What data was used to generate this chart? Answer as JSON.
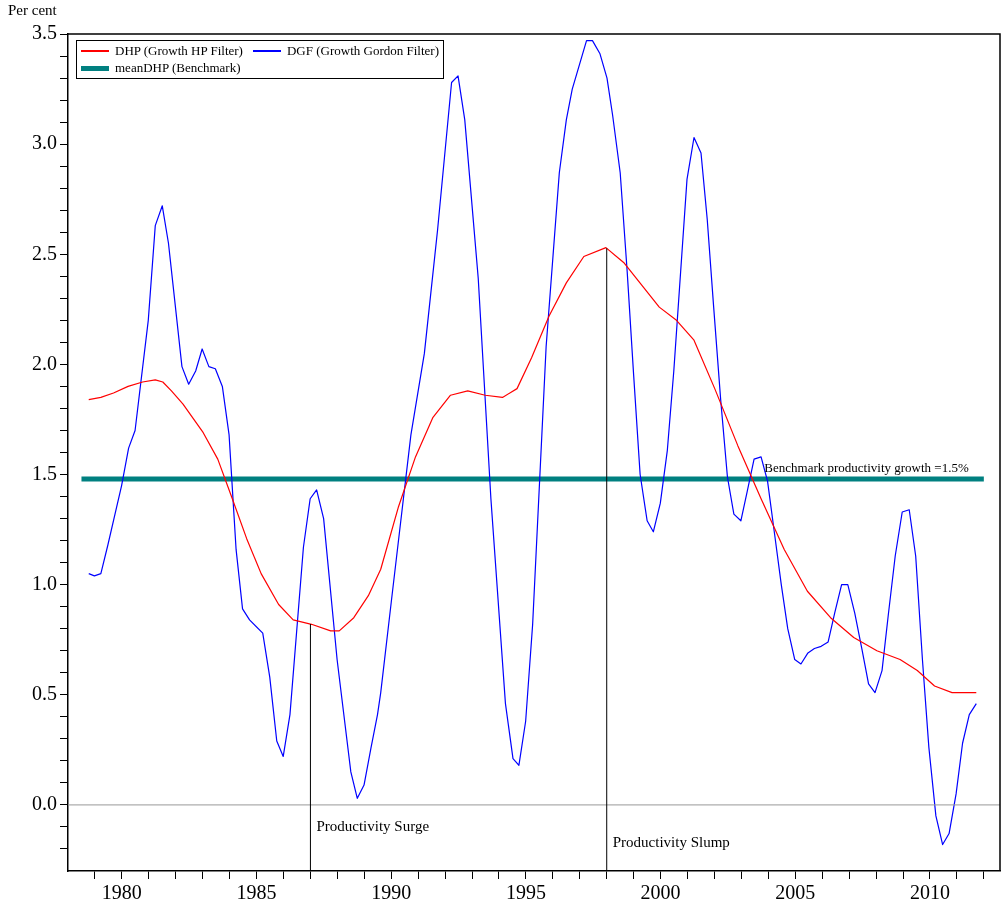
{
  "chart_data": {
    "type": "line",
    "ylabel": "Per cent",
    "xlim": [
      1978,
      2012.6
    ],
    "ylim": [
      -0.3,
      3.5
    ],
    "xticks": [
      {
        "value": 1979,
        "label": null
      },
      {
        "value": 1980,
        "label": "1980"
      },
      {
        "value": 1981,
        "label": null
      },
      {
        "value": 1982,
        "label": null
      },
      {
        "value": 1983,
        "label": null
      },
      {
        "value": 1984,
        "label": null
      },
      {
        "value": 1985,
        "label": "1985"
      },
      {
        "value": 1986,
        "label": null
      },
      {
        "value": 1987,
        "label": null
      },
      {
        "value": 1988,
        "label": null
      },
      {
        "value": 1989,
        "label": null
      },
      {
        "value": 1990,
        "label": "1990"
      },
      {
        "value": 1991,
        "label": null
      },
      {
        "value": 1992,
        "label": null
      },
      {
        "value": 1993,
        "label": null
      },
      {
        "value": 1994,
        "label": null
      },
      {
        "value": 1995,
        "label": "1995"
      },
      {
        "value": 1996,
        "label": null
      },
      {
        "value": 1997,
        "label": null
      },
      {
        "value": 1998,
        "label": null
      },
      {
        "value": 1999,
        "label": null
      },
      {
        "value": 2000,
        "label": "2000"
      },
      {
        "value": 2001,
        "label": null
      },
      {
        "value": 2002,
        "label": null
      },
      {
        "value": 2003,
        "label": null
      },
      {
        "value": 2004,
        "label": null
      },
      {
        "value": 2005,
        "label": "2005"
      },
      {
        "value": 2006,
        "label": null
      },
      {
        "value": 2007,
        "label": null
      },
      {
        "value": 2008,
        "label": null
      },
      {
        "value": 2009,
        "label": null
      },
      {
        "value": 2010,
        "label": "2010"
      },
      {
        "value": 2011,
        "label": null
      },
      {
        "value": 2012,
        "label": null
      }
    ],
    "yticks": [
      {
        "value": -0.2,
        "label": null
      },
      {
        "value": -0.1,
        "label": null
      },
      {
        "value": 0,
        "label": "0.0"
      },
      {
        "value": 0.1,
        "label": null
      },
      {
        "value": 0.2,
        "label": null
      },
      {
        "value": 0.3,
        "label": null
      },
      {
        "value": 0.4,
        "label": null
      },
      {
        "value": 0.5,
        "label": "0.5"
      },
      {
        "value": 0.6,
        "label": null
      },
      {
        "value": 0.7,
        "label": null
      },
      {
        "value": 0.8,
        "label": null
      },
      {
        "value": 0.9,
        "label": null
      },
      {
        "value": 1,
        "label": "1.0"
      },
      {
        "value": 1.1,
        "label": null
      },
      {
        "value": 1.2,
        "label": null
      },
      {
        "value": 1.3,
        "label": null
      },
      {
        "value": 1.4,
        "label": null
      },
      {
        "value": 1.5,
        "label": "1.5"
      },
      {
        "value": 1.6,
        "label": null
      },
      {
        "value": 1.7,
        "label": null
      },
      {
        "value": 1.8,
        "label": null
      },
      {
        "value": 1.9,
        "label": null
      },
      {
        "value": 2,
        "label": "2.0"
      },
      {
        "value": 2.1,
        "label": null
      },
      {
        "value": 2.2,
        "label": null
      },
      {
        "value": 2.3,
        "label": null
      },
      {
        "value": 2.4,
        "label": null
      },
      {
        "value": 2.5,
        "label": "2.5"
      },
      {
        "value": 2.6,
        "label": null
      },
      {
        "value": 2.7,
        "label": null
      },
      {
        "value": 2.8,
        "label": null
      },
      {
        "value": 2.9,
        "label": null
      },
      {
        "value": 3,
        "label": "3.0"
      },
      {
        "value": 3.1,
        "label": null
      },
      {
        "value": 3.2,
        "label": null
      },
      {
        "value": 3.3,
        "label": null
      },
      {
        "value": 3.4,
        "label": null
      },
      {
        "value": 3.5,
        "label": "3.5"
      }
    ],
    "legend": "top left",
    "grid": false,
    "marker": "none",
    "series": [
      {
        "name": "DHP (Growth HP Filter)",
        "color": "#ff0000",
        "x": [
          1978.77,
          1979.22,
          1979.69,
          1980.23,
          1980.77,
          1981.24,
          1981.52,
          1981.84,
          1982.27,
          1983.02,
          1983.56,
          1984.1,
          1984.63,
          1985.17,
          1985.82,
          1986.36,
          1987.04,
          1987.75,
          1988.07,
          1988.61,
          1989.15,
          1989.61,
          1990.26,
          1990.9,
          1991.55,
          1992.2,
          1992.84,
          1993.49,
          1994.13,
          1994.67,
          1995.21,
          1995.86,
          1996.5,
          1997.15,
          1997.97,
          1998.65,
          1999.3,
          1999.95,
          2000.59,
          2001.24,
          2002.01,
          2002.87,
          2003.73,
          2004.59,
          2005.45,
          2006.31,
          2007.17,
          2008.03,
          2008.89,
          2009.53,
          2010.17,
          2010.82,
          2011.72
        ],
        "values": [
          1.84,
          1.85,
          1.87,
          1.9,
          1.92,
          1.93,
          1.92,
          1.88,
          1.82,
          1.69,
          1.57,
          1.39,
          1.21,
          1.05,
          0.91,
          0.84,
          0.82,
          0.79,
          0.79,
          0.85,
          0.95,
          1.07,
          1.35,
          1.58,
          1.76,
          1.86,
          1.88,
          1.86,
          1.85,
          1.89,
          2.03,
          2.22,
          2.37,
          2.49,
          2.53,
          2.46,
          2.36,
          2.26,
          2.2,
          2.11,
          1.89,
          1.63,
          1.39,
          1.16,
          0.97,
          0.85,
          0.76,
          0.7,
          0.66,
          0.61,
          0.54,
          0.51,
          0.51
        ]
      },
      {
        "name": "DGF (Growth Gordon Filter)",
        "color": "#0000ff",
        "x": [
          1978.77,
          1978.98,
          1979.22,
          1979.48,
          1979.99,
          1980.25,
          1980.49,
          1980.98,
          1981.24,
          1981.5,
          1981.73,
          1982.23,
          1982.48,
          1982.74,
          1982.98,
          1983.23,
          1983.47,
          1983.73,
          1983.98,
          1984.24,
          1984.48,
          1984.74,
          1985.23,
          1985.49,
          1985.75,
          1985.99,
          1986.24,
          1986.74,
          1986.99,
          1987.23,
          1987.49,
          1987.99,
          1988.5,
          1988.74,
          1988.99,
          1989.25,
          1989.49,
          1989.61,
          1990.0,
          1990.73,
          1991.23,
          1991.72,
          1992.24,
          1992.48,
          1992.73,
          1993.23,
          1993.7,
          1994.24,
          1994.52,
          1994.74,
          1994.99,
          1995.25,
          1995.75,
          1996.24,
          1996.5,
          1996.72,
          1997.25,
          1997.47,
          1997.75,
          1998.01,
          1998.22,
          1998.5,
          1998.76,
          1999.0,
          1999.24,
          1999.5,
          1999.73,
          1999.99,
          2000.25,
          2000.49,
          2000.98,
          2001.24,
          2001.5,
          2001.73,
          2001.97,
          2002.23,
          2002.48,
          2002.72,
          2002.98,
          2003.21,
          2003.47,
          2003.73,
          2003.97,
          2004.22,
          2004.48,
          2004.72,
          2004.98,
          2005.21,
          2005.47,
          2005.71,
          2005.96,
          2006.22,
          2006.46,
          2006.72,
          2006.95,
          2007.21,
          2007.47,
          2007.72,
          2007.96,
          2008.22,
          2008.46,
          2008.71,
          2008.97,
          2009.23,
          2009.47,
          2009.72,
          2009.96,
          2010.22,
          2010.47,
          2010.71,
          2010.97,
          2011.21,
          2011.46,
          2011.72
        ],
        "values": [
          1.05,
          1.04,
          1.05,
          1.18,
          1.45,
          1.62,
          1.7,
          2.2,
          2.63,
          2.72,
          2.55,
          1.99,
          1.91,
          1.97,
          2.07,
          1.99,
          1.98,
          1.9,
          1.68,
          1.16,
          0.89,
          0.84,
          0.78,
          0.58,
          0.29,
          0.22,
          0.41,
          1.17,
          1.39,
          1.43,
          1.3,
          0.66,
          0.15,
          0.03,
          0.09,
          0.26,
          0.41,
          0.51,
          0.92,
          1.68,
          2.05,
          2.61,
          3.28,
          3.31,
          3.11,
          2.39,
          1.39,
          0.46,
          0.21,
          0.18,
          0.38,
          0.82,
          2.08,
          2.87,
          3.11,
          3.25,
          3.47,
          3.47,
          3.41,
          3.3,
          3.13,
          2.87,
          2.42,
          1.95,
          1.5,
          1.29,
          1.24,
          1.37,
          1.61,
          1.97,
          2.84,
          3.03,
          2.96,
          2.66,
          2.26,
          1.84,
          1.49,
          1.32,
          1.29,
          1.42,
          1.57,
          1.58,
          1.47,
          1.24,
          1.0,
          0.8,
          0.66,
          0.64,
          0.69,
          0.71,
          0.72,
          0.74,
          0.87,
          1.0,
          1.0,
          0.87,
          0.71,
          0.55,
          0.51,
          0.61,
          0.87,
          1.13,
          1.33,
          1.34,
          1.13,
          0.66,
          0.26,
          -0.05,
          -0.18,
          -0.13,
          0.05,
          0.28,
          0.41,
          0.46
        ]
      },
      {
        "name": "meanDHP (Benchmark)",
        "color": "#008080",
        "x": [
          1978.5,
          2012
        ],
        "values": [
          1.48,
          1.48
        ]
      }
    ],
    "ref_lines": [
      {
        "axis": "y",
        "value": 0,
        "color": "#999999"
      },
      {
        "axis": "x",
        "value": 1987,
        "label": "Productivity Surge",
        "color": "#000000"
      },
      {
        "axis": "x",
        "value": 1998,
        "label": "Productivity Slump",
        "color": "#000000"
      }
    ],
    "annotations": [
      {
        "text": "Benchmark productivity growth =1.5%",
        "x": 2003.85,
        "y": 1.48
      }
    ]
  }
}
